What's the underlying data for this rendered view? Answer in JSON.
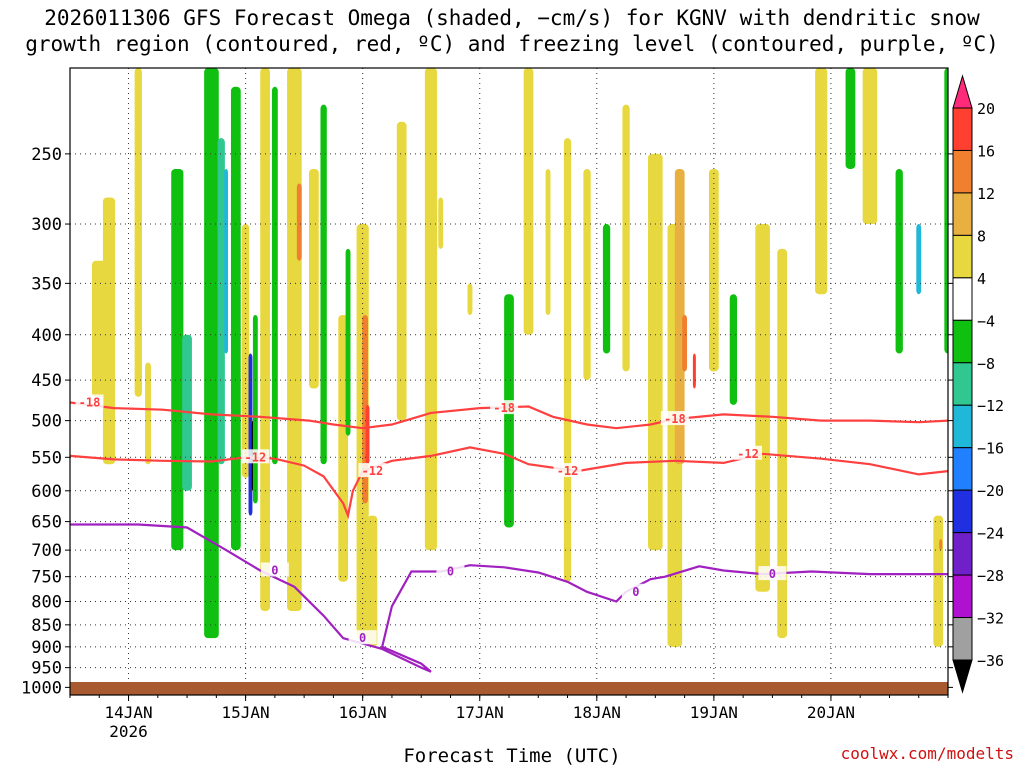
{
  "title_line1": "2026011306 GFS Forecast Omega (shaded, −cm/s) for KGNV with dendritic snow",
  "title_line2": "growth region (contoured, red, ºC) and freezing level (contoured, purple, ºC)",
  "xlabel": "Forecast Time (UTC)",
  "credit": "coolwx.com/modelts",
  "chart_data": {
    "type": "heatmap",
    "title": "2026011306 GFS Forecast Omega (shaded, −cm/s) for KGNV with dendritic snow growth region (contoured, red, ºC) and freezing level (contoured, purple, ºC)",
    "xlabel": "Forecast Time (UTC)",
    "ylabel": "",
    "x_ticks": [
      {
        "label": "14JAN",
        "sub": "2026",
        "t": 18
      },
      {
        "label": "15JAN",
        "sub": "",
        "t": 42
      },
      {
        "label": "16JAN",
        "sub": "",
        "t": 66
      },
      {
        "label": "17JAN",
        "sub": "",
        "t": 90
      },
      {
        "label": "18JAN",
        "sub": "",
        "t": 114
      },
      {
        "label": "19JAN",
        "sub": "",
        "t": 138
      },
      {
        "label": "20JAN",
        "sub": "",
        "t": 162
      }
    ],
    "xlim_hours": [
      6,
      186
    ],
    "y_ticks": [
      250,
      300,
      350,
      400,
      450,
      500,
      550,
      600,
      650,
      700,
      750,
      800,
      850,
      900,
      950,
      1000
    ],
    "ylim_hPa": [
      200,
      1020
    ],
    "y_scale": "log",
    "grid": true,
    "colorbar": {
      "labels": [
        "20",
        "16",
        "12",
        "8",
        "4",
        "−4",
        "−8",
        "−12",
        "−16",
        "−20",
        "−24",
        "−28",
        "−32",
        "−36"
      ],
      "colors": [
        "#ff2a7a",
        "#ff4030",
        "#f08030",
        "#e8b040",
        "#e8d840",
        "#ffffff",
        "#10c010",
        "#30c890",
        "#20b8d8",
        "#2080ff",
        "#2030e0",
        "#7020c8",
        "#b010d0",
        "#a0a0a0",
        "#000000"
      ]
    },
    "contours": [
      {
        "name": "-18",
        "color": "#ff4040",
        "label_at": [
          [
            10,
            "-18"
          ],
          [
            95,
            "-18"
          ],
          [
            130,
            "-18"
          ]
        ],
        "points": [
          [
            6,
            477
          ],
          [
            15,
            484
          ],
          [
            25,
            486
          ],
          [
            35,
            492
          ],
          [
            45,
            495
          ],
          [
            55,
            500
          ],
          [
            60,
            505
          ],
          [
            66,
            510
          ],
          [
            72,
            505
          ],
          [
            80,
            490
          ],
          [
            90,
            484
          ],
          [
            100,
            482
          ],
          [
            105,
            495
          ],
          [
            112,
            505
          ],
          [
            118,
            510
          ],
          [
            125,
            505
          ],
          [
            130,
            498
          ],
          [
            140,
            492
          ],
          [
            150,
            495
          ],
          [
            160,
            500
          ],
          [
            170,
            500
          ],
          [
            180,
            502
          ],
          [
            186,
            500
          ]
        ]
      },
      {
        "name": "-12",
        "color": "#ff4040",
        "label_at": [
          [
            44,
            "-12"
          ],
          [
            68,
            "-12"
          ],
          [
            108,
            "-12"
          ],
          [
            145,
            "-12"
          ]
        ],
        "points": [
          [
            6,
            548
          ],
          [
            15,
            553
          ],
          [
            25,
            555
          ],
          [
            35,
            556
          ],
          [
            42,
            550
          ],
          [
            48,
            552
          ],
          [
            54,
            562
          ],
          [
            58,
            578
          ],
          [
            62,
            620
          ],
          [
            63,
            640
          ],
          [
            64,
            600
          ],
          [
            66,
            570
          ],
          [
            72,
            555
          ],
          [
            80,
            548
          ],
          [
            88,
            536
          ],
          [
            95,
            545
          ],
          [
            100,
            560
          ],
          [
            110,
            570
          ],
          [
            120,
            558
          ],
          [
            130,
            555
          ],
          [
            140,
            558
          ],
          [
            148,
            545
          ],
          [
            160,
            552
          ],
          [
            170,
            560
          ],
          [
            180,
            575
          ],
          [
            186,
            570
          ]
        ]
      },
      {
        "name": "0",
        "color": "#a020c0",
        "label_at": [
          [
            48,
            "0"
          ],
          [
            66,
            "0"
          ],
          [
            84,
            "0"
          ],
          [
            122,
            "0"
          ],
          [
            150,
            "0"
          ]
        ],
        "points": [
          [
            6,
            655
          ],
          [
            20,
            655
          ],
          [
            30,
            660
          ],
          [
            38,
            700
          ],
          [
            45,
            738
          ],
          [
            52,
            770
          ],
          [
            58,
            830
          ],
          [
            62,
            880
          ],
          [
            70,
            905
          ],
          [
            78,
            950
          ],
          [
            80,
            960
          ],
          [
            78,
            940
          ],
          [
            70,
            900
          ],
          [
            72,
            810
          ],
          [
            76,
            740
          ],
          [
            82,
            740
          ],
          [
            88,
            728
          ],
          [
            95,
            732
          ],
          [
            102,
            742
          ],
          [
            108,
            760
          ],
          [
            112,
            780
          ],
          [
            118,
            800
          ],
          [
            120,
            780
          ],
          [
            125,
            755
          ],
          [
            128,
            750
          ],
          [
            135,
            730
          ],
          [
            140,
            738
          ],
          [
            148,
            745
          ],
          [
            158,
            740
          ],
          [
            170,
            745
          ],
          [
            186,
            745
          ]
        ]
      }
    ]
  }
}
